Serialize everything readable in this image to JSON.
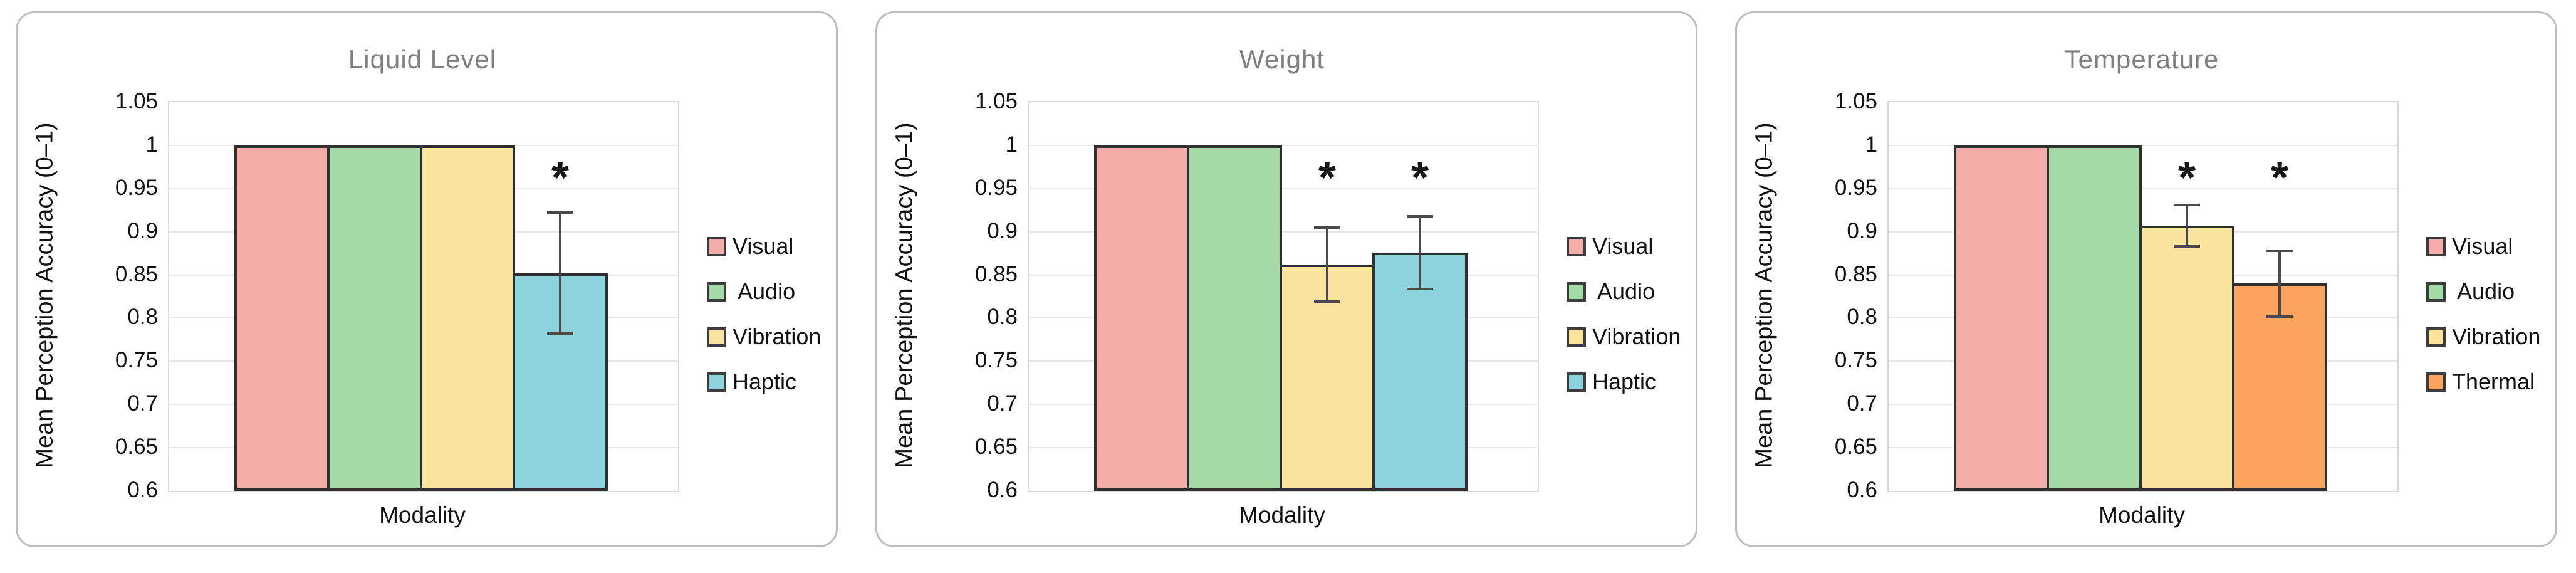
{
  "style": {
    "background": "#ffffff",
    "card_border_color": "#BDBDBD",
    "title_color": "#7F7F7F",
    "text_color": "#111111",
    "grid_color": "#E7E7E7",
    "plot_border_color": "#D9D9D9",
    "bar_outline_color": "#2F2F2F",
    "error_bar_color": "#4A4A4A"
  },
  "chart_data": [
    {
      "type": "bar",
      "title": "Liquid Level",
      "xlabel": "Modality",
      "ylabel": "Mean Perception Accuracy (0–1)",
      "ylim": [
        0.6,
        1.05
      ],
      "ytick_labels": [
        "1.05",
        "1",
        "0.95",
        "0.9",
        "0.85",
        "0.8",
        "0.75",
        "0.7",
        "0.65",
        "0.6"
      ],
      "grid": true,
      "legend_position": "right",
      "categories": [
        "Visual",
        "Audio",
        "Vibration",
        "Haptic"
      ],
      "legend_labels": [
        "Visual",
        " Audio",
        "Vibration",
        "Haptic"
      ],
      "values": [
        1.0,
        1.0,
        1.0,
        0.852
      ],
      "error_bars": [
        0,
        0,
        0,
        0.07
      ],
      "significance": [
        false,
        false,
        false,
        true
      ],
      "significance_marker": "*",
      "bar_colors": [
        "#F4ADA9",
        "#A4DAA6",
        "#FAE49D",
        "#8DD3DE"
      ]
    },
    {
      "type": "bar",
      "title": "Weight",
      "xlabel": "Modality",
      "ylabel": "Mean Perception Accuracy (0–1)",
      "ylim": [
        0.6,
        1.05
      ],
      "ytick_labels": [
        "1.05",
        "1",
        "0.95",
        "0.9",
        "0.85",
        "0.8",
        "0.75",
        "0.7",
        "0.65",
        "0.6"
      ],
      "grid": true,
      "legend_position": "right",
      "categories": [
        "Visual",
        "Audio",
        "Vibration",
        "Haptic"
      ],
      "legend_labels": [
        "Visual",
        " Audio",
        "Vibration",
        "Haptic"
      ],
      "values": [
        1.0,
        1.0,
        0.862,
        0.876
      ],
      "error_bars": [
        0,
        0,
        0.043,
        0.042
      ],
      "significance": [
        false,
        false,
        true,
        true
      ],
      "significance_marker": "*",
      "bar_colors": [
        "#F4ADA9",
        "#A4DAA6",
        "#FAE49D",
        "#8DD3DE"
      ]
    },
    {
      "type": "bar",
      "title": "Temperature",
      "xlabel": "Modality",
      "ylabel": "Mean Perception Accuracy (0–1)",
      "ylim": [
        0.6,
        1.05
      ],
      "ytick_labels": [
        "1.05",
        "1",
        "0.95",
        "0.9",
        "0.85",
        "0.8",
        "0.75",
        "0.7",
        "0.65",
        "0.6"
      ],
      "grid": true,
      "legend_position": "right",
      "categories": [
        "Visual",
        "Audio",
        "Vibration",
        "Thermal"
      ],
      "legend_labels": [
        "Visual",
        " Audio",
        "Vibration",
        "Thermal"
      ],
      "values": [
        1.0,
        1.0,
        0.907,
        0.84
      ],
      "error_bars": [
        0,
        0,
        0.024,
        0.038
      ],
      "significance": [
        false,
        false,
        true,
        true
      ],
      "significance_marker": "*",
      "bar_colors": [
        "#F4ADA9",
        "#A4DAA6",
        "#FAE49D",
        "#FBA45F"
      ]
    }
  ]
}
